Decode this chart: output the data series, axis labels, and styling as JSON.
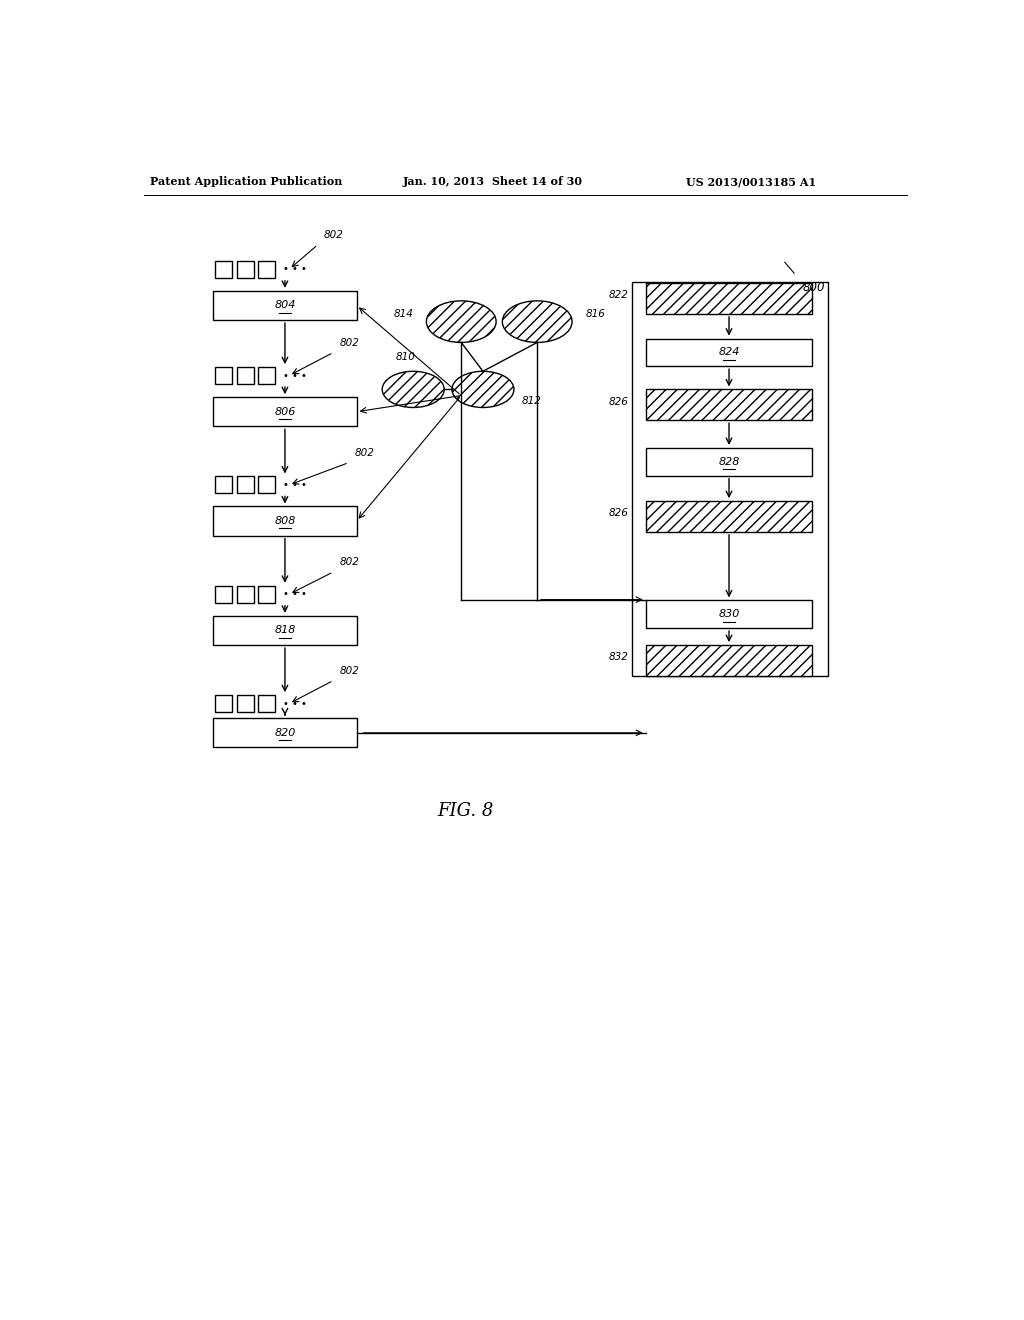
{
  "title_line1": "Patent Application Publication",
  "title_line2": "Jan. 10, 2013  Sheet 14 of 30",
  "title_line3": "US 2013/0013185 A1",
  "fig_label": "FIG. 8",
  "bg_color": "#ffffff",
  "label_800": "800",
  "label_802": "802",
  "label_804": "804",
  "label_806": "806",
  "label_808": "808",
  "label_810": "810",
  "label_812": "812",
  "label_814": "814",
  "label_816": "816",
  "label_818": "818",
  "label_820": "820",
  "label_822": "822",
  "label_824": "824",
  "label_826a": "826",
  "label_826b": "826",
  "label_828": "828",
  "label_830": "830",
  "label_832": "832"
}
